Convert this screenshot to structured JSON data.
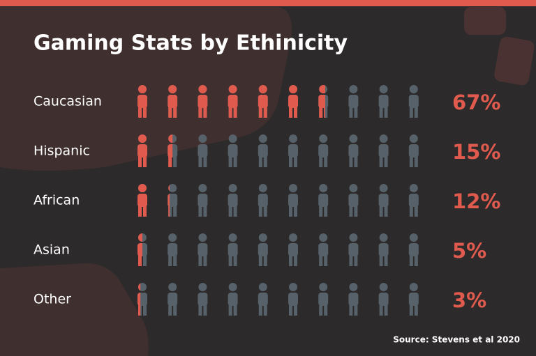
{
  "chart_data": {
    "type": "pictograph",
    "title": "Gaming Stats by Ethinicity",
    "categories": [
      "Caucasian",
      "Hispanic",
      "African",
      "Asian",
      "Other"
    ],
    "values": [
      67,
      15,
      12,
      5,
      3
    ],
    "value_labels": [
      "67%",
      "15%",
      "12%",
      "5%",
      "3%"
    ],
    "xlim": [
      0,
      100
    ],
    "color": "#e05a4e",
    "empty_color": "#56616a",
    "source": "Source: Stevens et al 2020"
  }
}
